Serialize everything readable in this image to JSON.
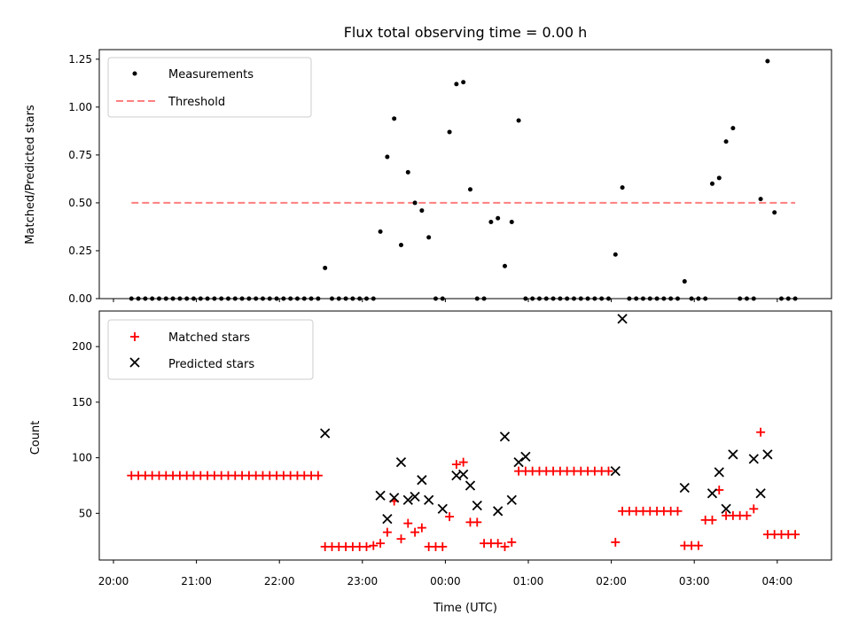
{
  "chart_data": [
    {
      "type": "scatter",
      "title": "Flux total observing time = 0.00 h",
      "xlabel": "",
      "ylabel": "Matched/Predicted stars",
      "ylim": [
        0.0,
        1.3
      ],
      "yticks": [
        "0.00",
        "0.25",
        "0.50",
        "0.75",
        "1.00",
        "1.25"
      ],
      "ytick_values": [
        0.0,
        0.25,
        0.5,
        0.75,
        1.0,
        1.25
      ],
      "grid": false,
      "legend": {
        "position": "top-left",
        "entries": [
          "Measurements",
          "Threshold"
        ]
      },
      "threshold": {
        "name": "Threshold",
        "value": 0.5,
        "x_start": "20:13",
        "x_end": "04:13",
        "color": "#ff7f7f"
      },
      "series": [
        {
          "name": "Measurements",
          "color": "#000000",
          "x": [
            "20:13",
            "20:18",
            "20:23",
            "20:28",
            "20:33",
            "20:38",
            "20:43",
            "20:48",
            "20:53",
            "20:58",
            "21:03",
            "21:08",
            "21:13",
            "21:18",
            "21:23",
            "21:28",
            "21:33",
            "21:38",
            "21:43",
            "21:48",
            "21:53",
            "21:58",
            "22:03",
            "22:08",
            "22:13",
            "22:18",
            "22:23",
            "22:28",
            "22:33",
            "22:38",
            "22:43",
            "22:48",
            "22:53",
            "22:58",
            "23:03",
            "23:08",
            "23:13",
            "23:18",
            "23:23",
            "23:28",
            "23:33",
            "23:38",
            "23:43",
            "23:48",
            "23:53",
            "23:58",
            "00:03",
            "00:08",
            "00:13",
            "00:18",
            "00:23",
            "00:28",
            "00:33",
            "00:38",
            "00:43",
            "00:48",
            "00:53",
            "00:58",
            "01:03",
            "01:08",
            "01:13",
            "01:18",
            "01:23",
            "01:28",
            "01:33",
            "01:38",
            "01:43",
            "01:48",
            "01:53",
            "01:58",
            "02:03",
            "02:08",
            "02:13",
            "02:18",
            "02:23",
            "02:28",
            "02:33",
            "02:38",
            "02:43",
            "02:48",
            "02:53",
            "02:58",
            "03:03",
            "03:08",
            "03:13",
            "03:18",
            "03:23",
            "03:28",
            "03:33",
            "03:38",
            "03:43",
            "03:48",
            "03:53",
            "03:58",
            "04:03",
            "04:08",
            "04:13"
          ],
          "y": [
            0,
            0,
            0,
            0,
            0,
            0,
            0,
            0,
            0,
            0,
            0,
            0,
            0,
            0,
            0,
            0,
            0,
            0,
            0,
            0,
            0,
            0,
            0,
            0,
            0,
            0,
            0,
            0,
            0.16,
            0,
            0,
            0,
            0,
            0,
            0,
            0,
            0.35,
            0.74,
            0.94,
            0.28,
            0.66,
            0.5,
            0.46,
            0.32,
            0,
            0,
            0.87,
            1.12,
            1.13,
            0.57,
            0,
            0,
            0.4,
            0.42,
            0.17,
            0.4,
            0.93,
            0,
            0,
            0,
            0,
            0,
            0,
            0,
            0,
            0,
            0,
            0,
            0,
            0,
            0.23,
            0.58,
            0,
            0,
            0,
            0,
            0,
            0,
            0,
            0,
            0.09,
            0,
            0,
            0,
            0.6,
            0.63,
            0.82,
            0.89,
            0,
            0,
            0,
            0.52,
            1.24,
            0.45,
            0,
            0,
            0
          ]
        }
      ]
    },
    {
      "type": "scatter",
      "title": "",
      "xlabel": "Time (UTC)",
      "ylabel": "Count",
      "ylim": [
        8,
        232
      ],
      "yticks": [
        "50",
        "100",
        "150",
        "200"
      ],
      "ytick_values": [
        50,
        100,
        150,
        200
      ],
      "xticks": [
        "20:00",
        "21:00",
        "22:00",
        "23:00",
        "00:00",
        "01:00",
        "02:00",
        "03:00",
        "04:00"
      ],
      "grid": false,
      "legend": {
        "position": "top-left",
        "entries": [
          "Matched stars",
          "Predicted stars"
        ]
      },
      "series": [
        {
          "name": "Matched stars",
          "marker": "+",
          "color": "#ff0000",
          "x": [
            "20:13",
            "20:18",
            "20:23",
            "20:28",
            "20:33",
            "20:38",
            "20:43",
            "20:48",
            "20:53",
            "20:58",
            "21:03",
            "21:08",
            "21:13",
            "21:18",
            "21:23",
            "21:28",
            "21:33",
            "21:38",
            "21:43",
            "21:48",
            "21:53",
            "21:58",
            "22:03",
            "22:08",
            "22:13",
            "22:18",
            "22:23",
            "22:28",
            "22:33",
            "22:38",
            "22:43",
            "22:48",
            "22:53",
            "22:58",
            "23:03",
            "23:08",
            "23:13",
            "23:18",
            "23:23",
            "23:28",
            "23:33",
            "23:38",
            "23:43",
            "23:48",
            "23:53",
            "23:58",
            "00:03",
            "00:08",
            "00:13",
            "00:18",
            "00:23",
            "00:28",
            "00:33",
            "00:38",
            "00:43",
            "00:48",
            "00:53",
            "00:58",
            "01:03",
            "01:08",
            "01:13",
            "01:18",
            "01:23",
            "01:28",
            "01:33",
            "01:38",
            "01:43",
            "01:48",
            "01:53",
            "01:58",
            "02:03",
            "02:08",
            "02:13",
            "02:18",
            "02:23",
            "02:28",
            "02:33",
            "02:38",
            "02:43",
            "02:48",
            "02:53",
            "02:58",
            "03:03",
            "03:08",
            "03:13",
            "03:18",
            "03:23",
            "03:28",
            "03:33",
            "03:38",
            "03:43",
            "03:48",
            "03:53",
            "03:58",
            "04:03",
            "04:08",
            "04:13"
          ],
          "y": [
            84,
            84,
            84,
            84,
            84,
            84,
            84,
            84,
            84,
            84,
            84,
            84,
            84,
            84,
            84,
            84,
            84,
            84,
            84,
            84,
            84,
            84,
            84,
            84,
            84,
            84,
            84,
            84,
            20,
            20,
            20,
            20,
            20,
            20,
            20,
            21,
            23,
            33,
            61,
            27,
            41,
            33,
            37,
            20,
            20,
            20,
            47,
            94,
            96,
            42,
            42,
            23,
            23,
            23,
            20,
            24,
            88,
            88,
            88,
            88,
            88,
            88,
            88,
            88,
            88,
            88,
            88,
            88,
            88,
            88,
            24,
            52,
            52,
            52,
            52,
            52,
            52,
            52,
            52,
            52,
            21,
            21,
            21,
            44,
            44,
            71,
            48,
            48,
            48,
            48,
            54,
            123,
            31,
            31,
            31,
            31,
            31
          ]
        },
        {
          "name": "Predicted stars",
          "marker": "x",
          "color": "#000000",
          "x": [
            "22:33",
            "23:13",
            "23:18",
            "23:23",
            "23:28",
            "23:33",
            "23:38",
            "23:43",
            "23:48",
            "23:58",
            "00:08",
            "00:13",
            "00:18",
            "00:23",
            "00:38",
            "00:43",
            "00:48",
            "00:53",
            "00:58",
            "02:03",
            "02:08",
            "02:53",
            "03:13",
            "03:18",
            "03:23",
            "03:28",
            "03:43",
            "03:48",
            "03:53"
          ],
          "y": [
            122,
            66,
            45,
            64,
            96,
            62,
            65,
            80,
            62,
            54,
            84,
            85,
            75,
            57,
            52,
            119,
            62,
            96,
            101,
            88,
            225,
            73,
            68,
            87,
            54,
            103,
            99,
            68,
            103
          ]
        }
      ]
    }
  ]
}
